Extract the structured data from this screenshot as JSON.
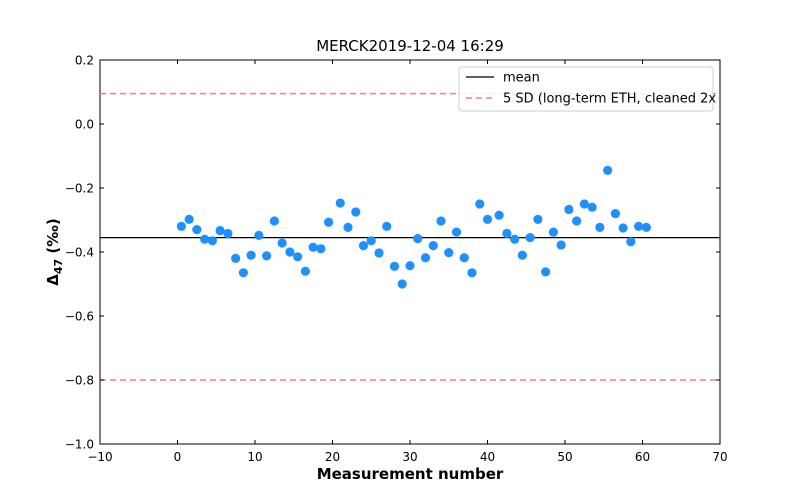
{
  "chart_data": {
    "type": "scatter",
    "title": "MERCK2019-12-04 16:29",
    "xlabel": "Measurement number",
    "ylabel_main": "Δ",
    "ylabel_sub": "47",
    "ylabel_unit": " (‰)",
    "xlim": [
      -10,
      70
    ],
    "ylim": [
      -1.0,
      0.2
    ],
    "xticks": [
      -10,
      0,
      10,
      20,
      30,
      40,
      50,
      60,
      70
    ],
    "yticks": [
      -1.0,
      -0.8,
      -0.6,
      -0.4,
      -0.2,
      0.0,
      0.2
    ],
    "xtick_labels": [
      "−10",
      "0",
      "10",
      "20",
      "30",
      "40",
      "50",
      "60",
      "70"
    ],
    "ytick_labels": [
      "−1.0",
      "−0.8",
      "−0.6",
      "−0.4",
      "−0.2",
      "0.0",
      "0.2"
    ],
    "grid": false,
    "legend_position": "top-right",
    "mean": -0.355,
    "sd_limits": [
      0.095,
      -0.8
    ],
    "legend": {
      "mean_label": "mean",
      "sd_label": "5 SD (long-term ETH, cleaned 2x"
    },
    "colors": {
      "points": "#1e90ff",
      "mean_line": "#000000",
      "sd_line": "#f08080"
    },
    "points": [
      [
        0.5,
        -0.32
      ],
      [
        1.5,
        -0.298
      ],
      [
        2.5,
        -0.33
      ],
      [
        3.5,
        -0.36
      ],
      [
        4.5,
        -0.365
      ],
      [
        5.5,
        -0.333
      ],
      [
        6.5,
        -0.342
      ],
      [
        7.5,
        -0.42
      ],
      [
        8.5,
        -0.465
      ],
      [
        9.5,
        -0.41
      ],
      [
        10.5,
        -0.348
      ],
      [
        11.5,
        -0.412
      ],
      [
        12.5,
        -0.303
      ],
      [
        13.5,
        -0.372
      ],
      [
        14.5,
        -0.4
      ],
      [
        15.5,
        -0.415
      ],
      [
        16.5,
        -0.46
      ],
      [
        17.5,
        -0.385
      ],
      [
        18.5,
        -0.39
      ],
      [
        19.5,
        -0.307
      ],
      [
        21,
        -0.247
      ],
      [
        22,
        -0.323
      ],
      [
        23,
        -0.275
      ],
      [
        24,
        -0.38
      ],
      [
        25,
        -0.365
      ],
      [
        26,
        -0.403
      ],
      [
        27,
        -0.32
      ],
      [
        28,
        -0.445
      ],
      [
        29,
        -0.5
      ],
      [
        30,
        -0.443
      ],
      [
        31,
        -0.358
      ],
      [
        32,
        -0.418
      ],
      [
        33,
        -0.38
      ],
      [
        34,
        -0.303
      ],
      [
        35,
        -0.402
      ],
      [
        36,
        -0.338
      ],
      [
        37,
        -0.418
      ],
      [
        38,
        -0.465
      ],
      [
        39,
        -0.25
      ],
      [
        40,
        -0.298
      ],
      [
        41.5,
        -0.285
      ],
      [
        42.5,
        -0.342
      ],
      [
        43.5,
        -0.36
      ],
      [
        44.5,
        -0.41
      ],
      [
        45.5,
        -0.355
      ],
      [
        46.5,
        -0.298
      ],
      [
        47.5,
        -0.462
      ],
      [
        48.5,
        -0.338
      ],
      [
        49.5,
        -0.378
      ],
      [
        50.5,
        -0.267
      ],
      [
        51.5,
        -0.303
      ],
      [
        52.5,
        -0.25
      ],
      [
        53.5,
        -0.26
      ],
      [
        54.5,
        -0.323
      ],
      [
        55.5,
        -0.145
      ],
      [
        56.5,
        -0.28
      ],
      [
        57.5,
        -0.325
      ],
      [
        58.5,
        -0.368
      ],
      [
        59.5,
        -0.32
      ],
      [
        60.5,
        -0.323
      ]
    ]
  }
}
